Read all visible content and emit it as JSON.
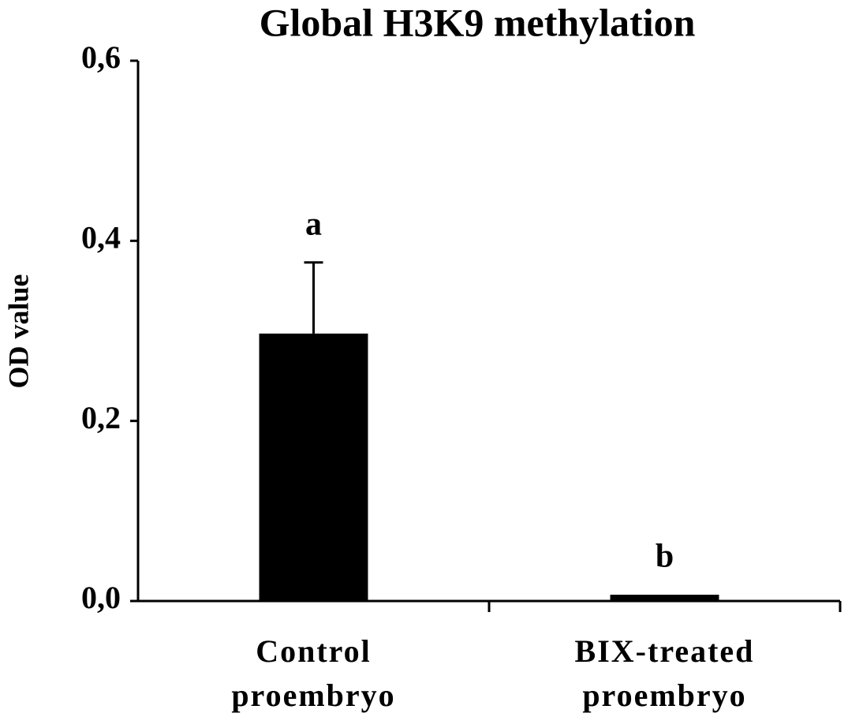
{
  "chart_data": {
    "type": "bar",
    "title": "Global H3K9 methylation",
    "y_label": "OD value",
    "categories": [
      "Control proembryo",
      "BIX-treated proembryo"
    ],
    "values": [
      0.297,
      0.007
    ],
    "errors": [
      0.079,
      null
    ],
    "annotations": [
      "a",
      "b"
    ],
    "color": "#000000",
    "ylim": [
      0,
      0.6
    ],
    "yticks": [
      {
        "value": 0,
        "label": "0,0"
      },
      {
        "value": 0.2,
        "label": "0,2"
      },
      {
        "value": 0.4,
        "label": "0,4"
      },
      {
        "value": 0.6,
        "label": "0,6"
      }
    ]
  }
}
